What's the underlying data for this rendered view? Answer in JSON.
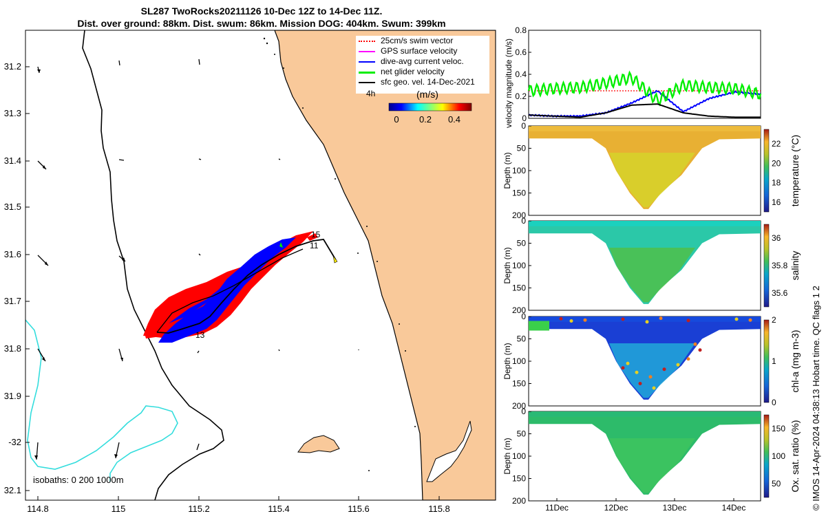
{
  "header": {
    "line1": "SL287 TwoRocks20211126 10-Dec 12Z to 14-Dec 11Z.",
    "line2": "Dist. over ground: 88km. Dist. swum: 86km. Mission DOG: 404km. Swum: 399km"
  },
  "map": {
    "legend": [
      {
        "label": "25cm/s swim vector",
        "color": "#ff0000"
      },
      {
        "label": "GPS surface velocity",
        "color": "#ff00ff"
      },
      {
        "label": "dive-avg current veloc.",
        "color": "#0000ff"
      },
      {
        "label": "net glider velocity",
        "color": "#00ee00"
      },
      {
        "label": "sfc geo. vel. 14-Dec-2021",
        "color": "#000000"
      }
    ],
    "scale_label": "4h",
    "colorbar_unit": "(m/s)",
    "colorbar_ticks": [
      "0",
      "0.2",
      "0.4"
    ],
    "isobaths_label": "isobaths: 0   200  1000m",
    "lon_ticks": [
      "114.8",
      "115",
      "115.2",
      "115.4",
      "115.6",
      "115.8"
    ],
    "lat_ticks": [
      "31.2",
      "31.3",
      "31.4",
      "31.5",
      "31.6",
      "31.7",
      "31.8",
      "31.9",
      "-32",
      "32.1"
    ],
    "track_labels": [
      "15",
      "11",
      "13"
    ],
    "land_color": "#f9c99a",
    "isobath_color": "#33dddd"
  },
  "panels": {
    "velocity": {
      "ylabel": "velocity magnitude (m/s)",
      "yticks": [
        "0",
        "0.2",
        "0.4",
        "0.6",
        "0.8"
      ]
    },
    "temperature": {
      "ylabel": "Depth (m)",
      "clabel": "temperature (°C)",
      "cticks": [
        "16",
        "18",
        "20",
        "22"
      ]
    },
    "salinity": {
      "ylabel": "Depth (m)",
      "clabel": "salinity",
      "cticks": [
        "35.6",
        "35.8",
        "36"
      ]
    },
    "chla": {
      "ylabel": "Depth (m)",
      "clabel": "chl-a (mg m-3)",
      "cticks": [
        "0",
        "1",
        "2"
      ]
    },
    "oxygen": {
      "ylabel": "Depth (m)",
      "clabel": "Ox. sat. ratio (%)",
      "cticks": [
        "50",
        "100",
        "150"
      ]
    },
    "depth_ticks": [
      "0",
      "50",
      "100",
      "150",
      "200"
    ],
    "time_ticks": [
      "11Dec",
      "12Dec",
      "13Dec",
      "14Dec"
    ]
  },
  "footer_note": "© IMOS 14-Apr-2024 04:38:13 Hobart time. QC flags 1  2",
  "chart_data": [
    {
      "type": "line",
      "title": "",
      "ylabel": "velocity magnitude (m/s)",
      "ylim": [
        0,
        0.8
      ],
      "x": [
        "10-Dec 12Z",
        "11-Dec 00Z",
        "11-Dec 12Z",
        "12-Dec 00Z",
        "12-Dec 12Z",
        "12-Dec 15Z",
        "13-Dec 00Z",
        "13-Dec 12Z",
        "14-Dec 00Z",
        "14-Dec 11Z"
      ],
      "series": [
        {
          "name": "25cm/s swim vector",
          "color": "#ff0000",
          "values": [
            0.25,
            0.25,
            0.25,
            0.25,
            0.25,
            0.25,
            0.25,
            0.25,
            0.25,
            0.25
          ]
        },
        {
          "name": "dive-avg current veloc.",
          "color": "#0000ff",
          "values": [
            0.03,
            0.02,
            0.02,
            0.05,
            0.14,
            0.25,
            0.06,
            0.18,
            0.24,
            0.22
          ]
        },
        {
          "name": "net glider velocity",
          "color": "#00ee00",
          "values": [
            0.25,
            0.27,
            0.28,
            0.32,
            0.37,
            0.16,
            0.3,
            0.28,
            0.27,
            0.22
          ]
        },
        {
          "name": "sfc geo. vel. 14-Dec-2021",
          "color": "#000000",
          "values": [
            0.03,
            0.02,
            0.01,
            0.05,
            0.12,
            0.13,
            0.05,
            0.02,
            0.01,
            0.01
          ]
        }
      ]
    },
    {
      "type": "heatmap",
      "clabel": "temperature (°C)",
      "ylabel": "Depth (m)",
      "ylim": [
        200,
        0
      ],
      "clim": [
        15,
        23.5
      ]
    },
    {
      "type": "heatmap",
      "clabel": "salinity",
      "ylabel": "Depth (m)",
      "ylim": [
        200,
        0
      ],
      "clim": [
        35.5,
        36.1
      ]
    },
    {
      "type": "heatmap",
      "clabel": "chl-a (mg m-3)",
      "ylabel": "Depth (m)",
      "ylim": [
        200,
        0
      ],
      "clim": [
        0,
        2
      ]
    },
    {
      "type": "heatmap",
      "clabel": "Ox. sat. ratio (%)",
      "ylabel": "Depth (m)",
      "ylim": [
        200,
        0
      ],
      "clim": [
        25,
        175
      ]
    }
  ]
}
